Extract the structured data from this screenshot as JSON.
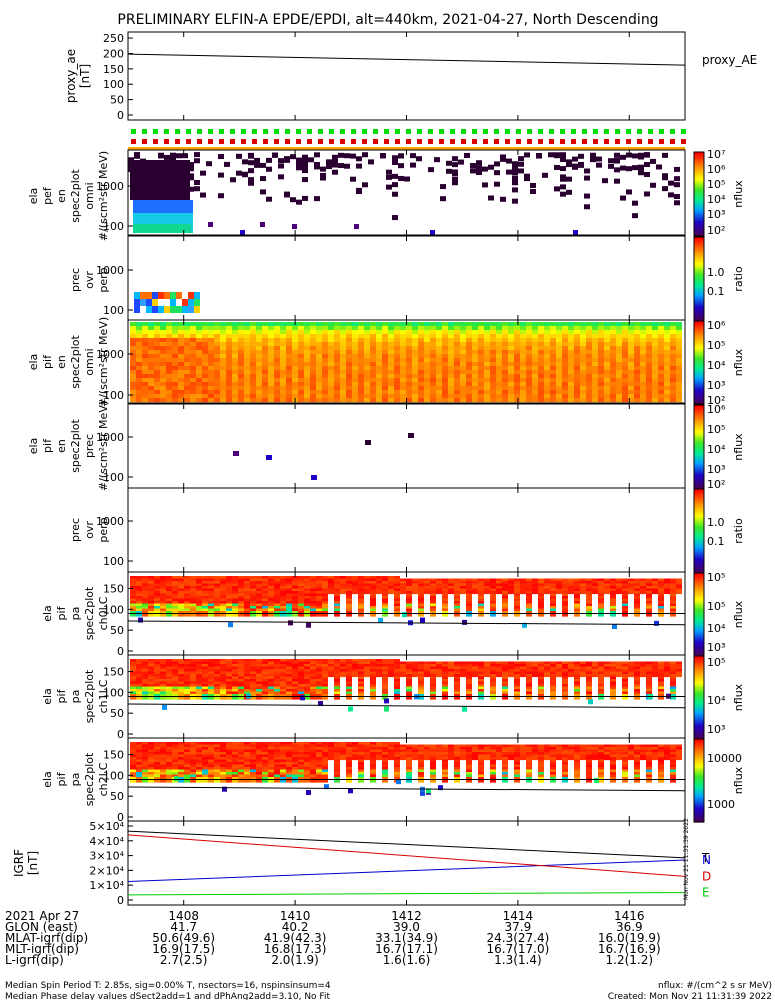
{
  "title": "PRELIMINARY ELFIN-A EPDE/EPDI, alt=440km, 2021-04-27, North Descending",
  "side_stamp": "Mon Nov 21 11:31:39 2022",
  "colors": {
    "red_line": "#dd0000",
    "blue_line": "#0000cc",
    "green_line": "#00cc00",
    "black": "#000000",
    "orange_bar": "#ffa500"
  },
  "chart_data": [
    {
      "id": "proxy_ae",
      "type": "line",
      "ylabel": "proxy_ae [nT]",
      "legend": "proxy_AE",
      "ylim": [
        0,
        260
      ],
      "yticks": [
        "250",
        "200",
        "150",
        "100",
        "50",
        "0"
      ],
      "x": [
        "1407",
        "1417"
      ],
      "values": [
        198,
        162
      ]
    },
    {
      "id": "ela_pef_en_omni",
      "type": "heatmap",
      "ylabel": [
        "ela",
        "pef",
        "en",
        "spec2plot",
        "omni",
        "#/(scm²str MeV)"
      ],
      "yticks": [
        "1000",
        "100"
      ],
      "scale": "log",
      "colorbar": {
        "label": "nflux",
        "ticks": [
          "10⁷",
          "10⁶",
          "10⁵",
          "10⁴",
          "10³",
          "10²"
        ]
      }
    },
    {
      "id": "pef_prec_ovr_perp",
      "type": "heatmap",
      "ylabel": [
        "prec",
        "ovr",
        "perp"
      ],
      "yticks": [
        "1000",
        "100"
      ],
      "colorbar": {
        "label": "ratio",
        "ticks": [
          "1.0",
          "0.1"
        ]
      }
    },
    {
      "id": "ela_pif_en_omni",
      "type": "heatmap",
      "ylabel": [
        "ela",
        "pif",
        "en",
        "spec2plot",
        "omni",
        "#/(scm²str MeV)"
      ],
      "yticks": [
        "1000",
        "100"
      ],
      "colorbar": {
        "label": "nflux",
        "ticks": [
          "10⁶",
          "10⁵",
          "10⁴",
          "10³",
          "10²"
        ]
      }
    },
    {
      "id": "ela_pif_en_prec",
      "type": "heatmap",
      "ylabel": [
        "ela",
        "pif",
        "en",
        "spec2plot",
        "prec",
        "#/(scm²str MeV)"
      ],
      "yticks": [
        "1000",
        "100"
      ],
      "colorbar": {
        "label": "nflux",
        "ticks": [
          "10⁶",
          "10⁵",
          "10⁴",
          "10³",
          "10²"
        ]
      }
    },
    {
      "id": "pif_prec_ovr_perp",
      "type": "heatmap",
      "ylabel": [
        "prec",
        "ovr",
        "perp"
      ],
      "yticks": [
        "1000",
        "100"
      ],
      "colorbar": {
        "label": "ratio",
        "ticks": [
          "1.0",
          "0.1"
        ]
      }
    },
    {
      "id": "pa_ch0LC",
      "type": "heatmap",
      "ylabel": [
        "ela",
        "pif",
        "pa",
        "spec2plot",
        "ch0LC"
      ],
      "yticks": [
        "150",
        "100",
        "50",
        "0"
      ],
      "colorbar": {
        "label": "nflux",
        "ticks": [
          "10⁵",
          "10⁵",
          "10⁴",
          "10³"
        ]
      }
    },
    {
      "id": "pa_ch1LC",
      "type": "heatmap",
      "ylabel": [
        "ela",
        "pif",
        "pa",
        "spec2plot",
        "ch1LC"
      ],
      "yticks": [
        "150",
        "100",
        "50",
        "0"
      ],
      "colorbar": {
        "label": "nflux",
        "ticks": [
          "10⁵",
          "10⁴",
          "10³"
        ]
      }
    },
    {
      "id": "pa_ch2LC",
      "type": "heatmap",
      "ylabel": [
        "ela",
        "pif",
        "pa",
        "spec2plot",
        "ch2LC"
      ],
      "yticks": [
        "150",
        "100",
        "50",
        "0"
      ],
      "colorbar": {
        "label": "nflux",
        "ticks": [
          "10000",
          "1000"
        ]
      }
    },
    {
      "id": "igrf",
      "type": "line",
      "ylabel": "IGRF [nT]",
      "ylim": [
        0,
        50000
      ],
      "yticks": [
        "5×10⁴",
        "4×10⁴",
        "3×10⁴",
        "2×10⁴",
        "1×10⁴",
        "0"
      ],
      "x": [
        "1407",
        "1417"
      ],
      "series": [
        {
          "name": "T",
          "color": "#000000",
          "values": [
            46500,
            28500
          ]
        },
        {
          "name": "N",
          "color": "#0000cc",
          "values": [
            12500,
            27000
          ]
        },
        {
          "name": "D",
          "color": "#dd0000",
          "values": [
            44000,
            16000
          ]
        },
        {
          "name": "E",
          "color": "#00cc00",
          "values": [
            3500,
            5000
          ]
        }
      ]
    }
  ],
  "xaxis": {
    "ticks": [
      "1408",
      "1410",
      "1412",
      "1414",
      "1416"
    ],
    "rows": [
      {
        "label": "2021 Apr 27",
        "values": [
          "1408",
          "1410",
          "1412",
          "1414",
          "1416"
        ]
      },
      {
        "label": "GLON (east)",
        "values": [
          "41.7",
          "40.2",
          "39.0",
          "37.9",
          "36.9"
        ]
      },
      {
        "label": "MLAT-igrf(dip)",
        "values": [
          "50.6(49.6)",
          "41.9(42.3)",
          "33.1(34.9)",
          "24.3(27.4)",
          "16.0(19.9)"
        ]
      },
      {
        "label": "MLT-igrf(dip)",
        "values": [
          "16.9(17.5)",
          "16.8(17.3)",
          "16.7(17.1)",
          "16.7(17.0)",
          "16.7(16.9)"
        ]
      },
      {
        "label": "L-igrf(dip)",
        "values": [
          "2.7(2.5)",
          "2.0(1.9)",
          "1.6(1.6)",
          "1.3(1.4)",
          "1.2(1.2)"
        ]
      }
    ]
  },
  "footer": {
    "line1_left": "Median Spin Period T: 2.85s, sig=0.00% T, nsectors=16, nspinsinsum=4",
    "line2_left": "Median Phase delay values dSect2add=1 and dPhAng2add=3.10, No Fit",
    "line1_right": "nflux: #/(cm^2 s sr MeV)",
    "line2_right": "Created: Mon Nov 21 11:31:39 2022"
  }
}
